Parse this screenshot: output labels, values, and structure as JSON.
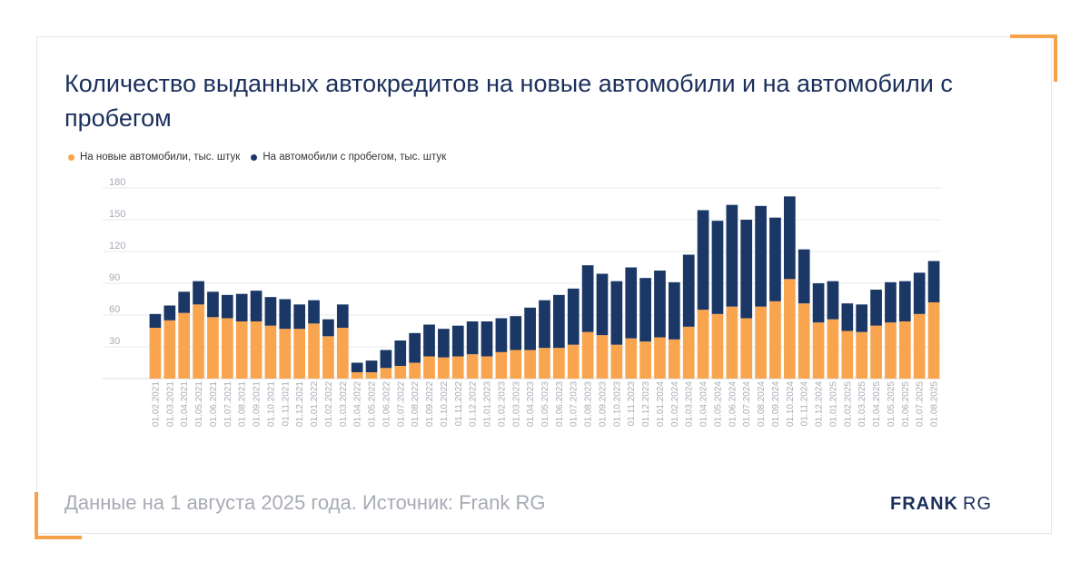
{
  "title": "Количество выданных автокредитов на новые автомобили и на автомобили с пробегом",
  "footer": "Данные на 1 августа 2025 года. Источник: Frank RG",
  "brand": {
    "strong": "FRANK",
    "light": "RG"
  },
  "colors": {
    "new": "#f9a54f",
    "used": "#1b3766",
    "title": "#1b2f5c",
    "grid": "#e6e8ec",
    "tick": "#a7abb4"
  },
  "chart_data": {
    "type": "bar",
    "stacked": true,
    "legend_position": "top-left",
    "grid": true,
    "ylim": [
      0,
      180
    ],
    "yticks": [
      30,
      60,
      90,
      120,
      150,
      180
    ],
    "categories": [
      "01.02.2021",
      "01.03.2021",
      "01.04.2021",
      "01.05.2021",
      "01.06.2021",
      "01.07.2021",
      "01.08.2021",
      "01.09.2021",
      "01.10.2021",
      "01.11.2021",
      "01.12.2021",
      "01.01.2022",
      "01.02.2022",
      "01.03.2022",
      "01.04.2022",
      "01.05.2022",
      "01.06.2022",
      "01.07.2022",
      "01.08.2022",
      "01.09.2022",
      "01.10.2022",
      "01.11.2022",
      "01.12.2022",
      "01.01.2023",
      "01.02.2023",
      "01.03.2023",
      "01.04.2023",
      "01.05.2023",
      "01.06.2023",
      "01.07.2023",
      "01.08.2023",
      "01.09.2023",
      "01.10.2023",
      "01.11.2023",
      "01.12.2023",
      "01.01.2024",
      "01.02.2024",
      "01.03.2024",
      "01.04.2024",
      "01.05.2024",
      "01.06.2024",
      "01.07.2024",
      "01.08.2024",
      "01.09.2024",
      "01.10.2024",
      "01.11.2024",
      "01.12.2024",
      "01.01.2025",
      "01.02.2025",
      "01.03.2025",
      "01.04.2025",
      "01.05.2025",
      "01.06.2025",
      "01.07.2025",
      "01.08.2025"
    ],
    "series": [
      {
        "name": "На новые автомобили, тыс. штук",
        "values": [
          48,
          55,
          62,
          70,
          58,
          57,
          54,
          54,
          50,
          47,
          47,
          52,
          40,
          48,
          6,
          6,
          10,
          12,
          15,
          21,
          20,
          21,
          23,
          21,
          25,
          27,
          27,
          29,
          29,
          32,
          44,
          41,
          32,
          38,
          35,
          39,
          37,
          49,
          65,
          61,
          68,
          57,
          68,
          73,
          94,
          71,
          53,
          56,
          45,
          44,
          50,
          53,
          54,
          61,
          72
        ]
      },
      {
        "name": "На автомобили с пробегом, тыс. штук",
        "values": [
          13,
          14,
          20,
          22,
          24,
          22,
          26,
          29,
          27,
          28,
          23,
          22,
          16,
          22,
          9,
          11,
          17,
          24,
          28,
          30,
          27,
          29,
          31,
          33,
          32,
          32,
          40,
          45,
          50,
          53,
          63,
          58,
          60,
          67,
          60,
          63,
          54,
          68,
          94,
          88,
          96,
          93,
          95,
          79,
          78,
          51,
          37,
          36,
          26,
          26,
          34,
          38,
          38,
          39,
          39
        ]
      }
    ]
  }
}
